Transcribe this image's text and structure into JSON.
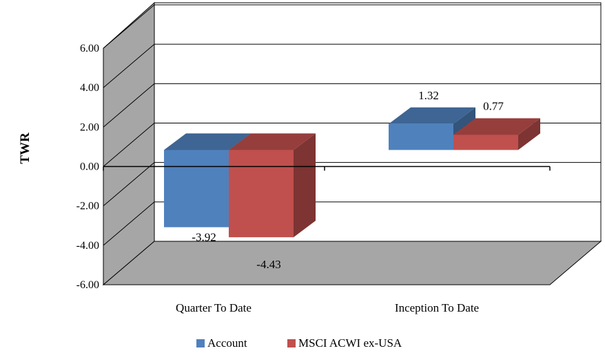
{
  "chart_data": {
    "type": "bar",
    "style": "3d-clustered-column",
    "ylabel": "TWR",
    "xlabel": "",
    "ylim": [
      -6,
      6
    ],
    "yticks": [
      "6.00",
      "4.00",
      "2.00",
      "0.00",
      "-2.00",
      "-4.00",
      "-6.00"
    ],
    "categories": [
      "Quarter To Date",
      "Inception To Date"
    ],
    "series": [
      {
        "name": "Account",
        "values": [
          -3.92,
          1.32
        ],
        "labels": [
          "-3.92",
          "1.32"
        ],
        "color": "#4f81bd"
      },
      {
        "name": "MSCI ACWI ex-USA",
        "values": [
          -4.43,
          0.77
        ],
        "labels": [
          "-4.43",
          "0.77"
        ],
        "color": "#c0504d"
      }
    ],
    "grid": true,
    "legend_position": "bottom"
  }
}
